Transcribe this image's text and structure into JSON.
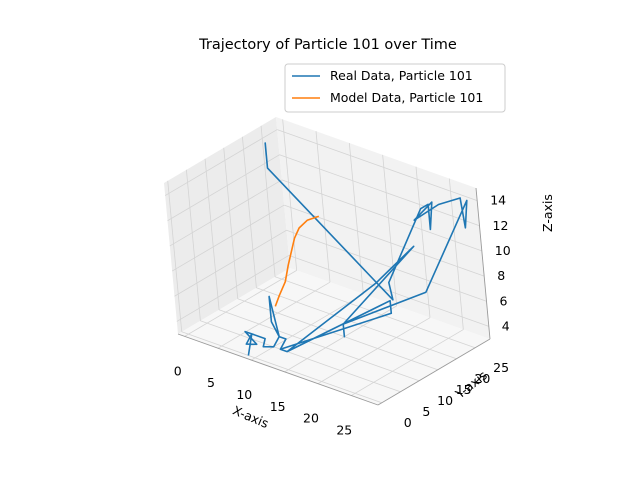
{
  "chart_data": {
    "type": "line",
    "projection": "3d",
    "title": "Trajectory of Particle 101 over Time",
    "xlabel": "X-axis",
    "ylabel": "Y-axis",
    "zlabel": "Z-axis",
    "xlim": [
      -1,
      29
    ],
    "ylim": [
      -1,
      29
    ],
    "zlim": [
      3,
      15
    ],
    "xticks": [
      "0",
      "5",
      "10",
      "15",
      "20",
      "25"
    ],
    "yticks": [
      "0",
      "5",
      "10",
      "15",
      "20",
      "25"
    ],
    "zticks": [
      "4",
      "6",
      "8",
      "10",
      "12",
      "14"
    ],
    "grid": true,
    "legend": "upper right",
    "series": [
      {
        "name": "Real Data, Particle 101",
        "color": "#1f77b4",
        "x": [
          0,
          0,
          0,
          20,
          20,
          19,
          25,
          25,
          25,
          25,
          22,
          22,
          26,
          26,
          27,
          28,
          28,
          24,
          15,
          15,
          15,
          24,
          24,
          20,
          12,
          11,
          12,
          22,
          22,
          11,
          12,
          11,
          12,
          11,
          10,
          10,
          11,
          10,
          9,
          10,
          10,
          8,
          7,
          8,
          7,
          8,
          7,
          8,
          7,
          8,
          9
        ],
        "y": [
          24,
          24,
          24,
          20,
          20,
          21,
          21,
          23,
          23,
          24,
          24,
          24,
          24,
          24,
          28,
          27,
          28,
          22,
          15,
          15,
          15,
          20,
          20,
          16,
          5,
          5,
          5,
          16,
          16,
          5,
          5,
          5,
          5,
          5,
          5,
          5,
          5,
          5,
          4,
          3,
          3,
          3,
          3,
          3,
          3,
          3,
          3,
          4,
          3,
          3,
          0
        ],
        "z": [
          13,
          14,
          12,
          6,
          6,
          7,
          14,
          14,
          12,
          14,
          12,
          12,
          14,
          14,
          14,
          12,
          14,
          7,
          4,
          3,
          4,
          11,
          11,
          8,
          3,
          3,
          3,
          7,
          6,
          3,
          4,
          3,
          4,
          4,
          7,
          5,
          4,
          3,
          3,
          4,
          4,
          4,
          4,
          4,
          4,
          4,
          4,
          3,
          3,
          4,
          3
        ]
      },
      {
        "name": "Model Data, Particle 101",
        "color": "#ff7f0e",
        "x": [
          9,
          9.3,
          9.8,
          10,
          10.2,
          10.5,
          11,
          12,
          13.5
        ],
        "y": [
          8,
          8.8,
          9.8,
          10.6,
          11.4,
          12,
          12.6,
          13.2,
          13.8
        ],
        "z": [
          5.5,
          6.3,
          7.3,
          8.5,
          9.5,
          10.5,
          11.3,
          12,
          12.5
        ]
      }
    ]
  }
}
